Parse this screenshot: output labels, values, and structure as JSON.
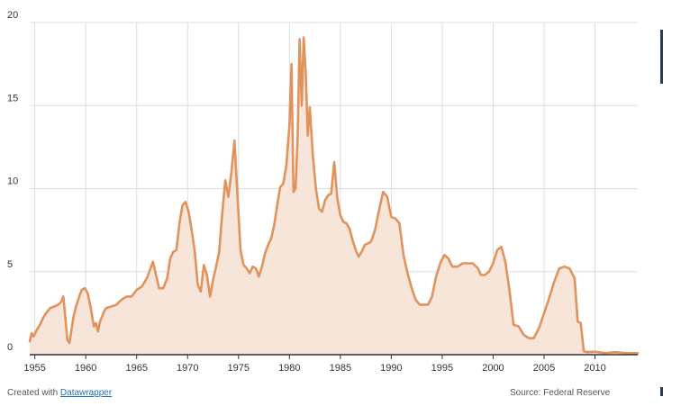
{
  "chart_data": {
    "type": "area",
    "title": "",
    "xlabel": "",
    "ylabel": "",
    "xlim": [
      1954.5,
      2014.2
    ],
    "ylim": [
      0,
      20
    ],
    "y_ticks": [
      0,
      5,
      10,
      15,
      20
    ],
    "x_ticks": [
      1955,
      1960,
      1965,
      1970,
      1975,
      1980,
      1985,
      1990,
      1995,
      2000,
      2005,
      2010
    ],
    "grid": "vertical and horizontal",
    "legend": "none",
    "colors": {
      "line": "#e0935d",
      "fill": "#f8e5da",
      "grid": "#dddddd",
      "axis": "#333333"
    },
    "series": [
      {
        "x": [
          1954.5,
          1954.7,
          1954.9,
          1955.2,
          1955.5,
          1955.8,
          1956.1,
          1956.5,
          1956.9,
          1957.3,
          1957.6,
          1957.8,
          1958.0,
          1958.2,
          1958.4,
          1958.6,
          1958.8,
          1959.0,
          1959.3,
          1959.6,
          1959.9,
          1960.2,
          1960.5,
          1960.8,
          1961.0,
          1961.2,
          1961.4,
          1961.6,
          1961.8,
          1962.0,
          1962.5,
          1963.0,
          1963.5,
          1964.0,
          1964.5,
          1965.0,
          1965.5,
          1966.0,
          1966.3,
          1966.6,
          1966.9,
          1967.2,
          1967.6,
          1968.0,
          1968.3,
          1968.6,
          1968.9,
          1969.2,
          1969.5,
          1969.8,
          1970.1,
          1970.4,
          1970.7,
          1971.0,
          1971.3,
          1971.6,
          1971.9,
          1972.2,
          1972.5,
          1972.8,
          1973.1,
          1973.4,
          1973.7,
          1974.0,
          1974.3,
          1974.6,
          1974.9,
          1975.2,
          1975.5,
          1975.8,
          1976.1,
          1976.4,
          1976.7,
          1977.0,
          1977.3,
          1977.6,
          1977.9,
          1978.2,
          1978.5,
          1978.8,
          1979.1,
          1979.4,
          1979.7,
          1980.0,
          1980.2,
          1980.4,
          1980.6,
          1980.8,
          1981.0,
          1981.2,
          1981.4,
          1981.6,
          1981.8,
          1982.0,
          1982.3,
          1982.6,
          1982.9,
          1983.2,
          1983.5,
          1983.8,
          1984.1,
          1984.4,
          1984.7,
          1985.0,
          1985.3,
          1985.6,
          1985.9,
          1986.2,
          1986.5,
          1986.8,
          1987.1,
          1987.4,
          1987.7,
          1988.0,
          1988.4,
          1988.8,
          1989.2,
          1989.6,
          1990.0,
          1990.4,
          1990.8,
          1991.2,
          1991.6,
          1992.0,
          1992.4,
          1992.8,
          1993.2,
          1993.6,
          1994.0,
          1994.4,
          1994.8,
          1995.2,
          1995.6,
          1996.0,
          1996.5,
          1997.0,
          1997.5,
          1998.0,
          1998.5,
          1998.8,
          1999.2,
          1999.6,
          2000.0,
          2000.4,
          2000.8,
          2001.2,
          2001.6,
          2002.0,
          2002.5,
          2003.0,
          2003.5,
          2004.0,
          2004.5,
          2005.0,
          2005.5,
          2006.0,
          2006.5,
          2007.0,
          2007.5,
          2008.0,
          2008.3,
          2008.6,
          2008.9,
          2009.2,
          2010.0,
          2011.0,
          2012.0,
          2013.0,
          2014.2
        ],
        "y": [
          0.8,
          1.3,
          1.1,
          1.5,
          1.8,
          2.2,
          2.5,
          2.8,
          2.9,
          3.0,
          3.2,
          3.5,
          2.2,
          0.9,
          0.7,
          1.5,
          2.3,
          2.8,
          3.4,
          3.9,
          4.0,
          3.7,
          2.8,
          1.7,
          1.9,
          1.4,
          2.0,
          2.3,
          2.6,
          2.8,
          2.9,
          3.0,
          3.3,
          3.5,
          3.5,
          3.9,
          4.1,
          4.6,
          5.1,
          5.6,
          4.8,
          4.0,
          4.0,
          4.6,
          5.8,
          6.2,
          6.3,
          7.9,
          9.0,
          9.2,
          8.6,
          7.5,
          6.2,
          4.2,
          3.8,
          5.4,
          4.8,
          3.5,
          4.5,
          5.3,
          6.2,
          8.5,
          10.5,
          9.5,
          11.0,
          12.9,
          9.5,
          6.3,
          5.4,
          5.2,
          4.9,
          5.3,
          5.2,
          4.7,
          5.3,
          6.1,
          6.6,
          7.0,
          7.8,
          9.0,
          10.1,
          10.3,
          11.4,
          13.8,
          17.5,
          9.8,
          10.0,
          13.0,
          19.0,
          15.0,
          19.1,
          17.0,
          13.2,
          14.9,
          12.0,
          10.0,
          8.8,
          8.6,
          9.3,
          9.6,
          9.7,
          11.6,
          9.4,
          8.4,
          8.0,
          7.9,
          7.6,
          6.9,
          6.3,
          5.9,
          6.2,
          6.6,
          6.7,
          6.8,
          7.5,
          8.7,
          9.8,
          9.5,
          8.3,
          8.2,
          7.9,
          6.0,
          4.9,
          4.0,
          3.3,
          3.0,
          3.0,
          3.0,
          3.5,
          4.7,
          5.5,
          6.0,
          5.8,
          5.3,
          5.3,
          5.5,
          5.5,
          5.5,
          5.2,
          4.8,
          4.8,
          5.0,
          5.5,
          6.3,
          6.5,
          5.6,
          3.9,
          1.8,
          1.7,
          1.2,
          1.0,
          1.0,
          1.6,
          2.5,
          3.4,
          4.4,
          5.2,
          5.3,
          5.2,
          4.6,
          2.0,
          1.9,
          0.2,
          0.15,
          0.18,
          0.1,
          0.15,
          0.1,
          0.09
        ]
      }
    ]
  },
  "footer": {
    "created_prefix": "Created with",
    "created_link": "Datawrapper",
    "source": "Source: Federal Reserve"
  }
}
